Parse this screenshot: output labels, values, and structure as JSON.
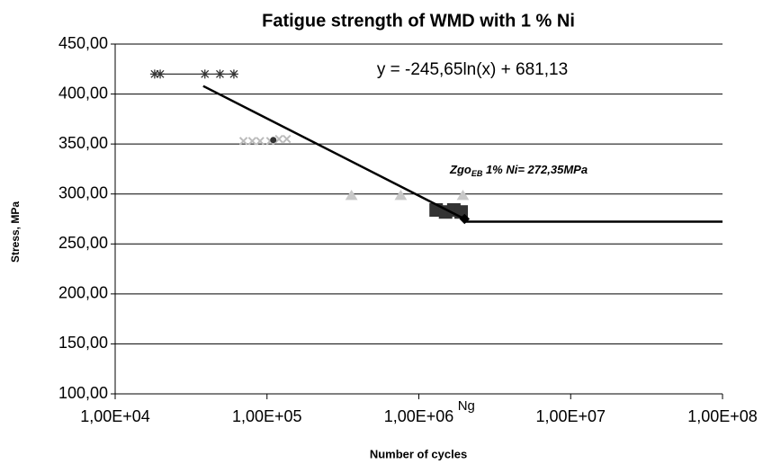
{
  "chart_data": {
    "type": "scatter",
    "title": "Fatigue strength of WMD with 1 % Ni",
    "y_label": "Stress, MPa",
    "x_label": "Number of cycles",
    "equation": "y = -245,65ln(x)  + 681,13",
    "limit_annotation": {
      "main": "Zgo",
      "subscript": "EB",
      "rest": " 1% Ni= 272,35MPa"
    },
    "ng_label": "Ng",
    "x_log": true,
    "grid": true,
    "xlim": [
      10000,
      100000000
    ],
    "xticks": [
      {
        "value": 10000,
        "label": "1,00E+04"
      },
      {
        "value": 100000,
        "label": "1,00E+05"
      },
      {
        "value": 1000000,
        "label": "1,00E+06"
      },
      {
        "value": 10000000,
        "label": "1,00E+07"
      },
      {
        "value": 100000000,
        "label": "1,00E+08"
      }
    ],
    "ylim": [
      100,
      450
    ],
    "yticks": [
      {
        "value": 100,
        "label": "100,00"
      },
      {
        "value": 150,
        "label": "150,00"
      },
      {
        "value": 200,
        "label": "200,00"
      },
      {
        "value": 250,
        "label": "250,00"
      },
      {
        "value": 300,
        "label": "300,00"
      },
      {
        "value": 350,
        "label": "350,00"
      },
      {
        "value": 400,
        "label": "400,00"
      },
      {
        "value": 450,
        "label": "450,00"
      }
    ],
    "series": [
      {
        "color": "#333333",
        "marker": "star",
        "line": true,
        "x": [
          18200,
          19800,
          39000,
          49000,
          60500
        ],
        "values": [
          420,
          420,
          420,
          420,
          420
        ]
      },
      {
        "color": "#bbbbbb",
        "marker": "x",
        "line": false,
        "x": [
          70000,
          80000,
          90000,
          105000,
          120000,
          135000
        ],
        "values": [
          353,
          353,
          353,
          353,
          355,
          355
        ]
      },
      {
        "color": "#333333",
        "marker": "dot",
        "line": false,
        "x": [
          110000
        ],
        "values": [
          354
        ]
      },
      {
        "color": "#c8c8c8",
        "marker": "triangle",
        "line": false,
        "x": [
          360000,
          760000,
          1950000
        ],
        "values": [
          298,
          298,
          298
        ]
      },
      {
        "color": "#333333",
        "marker": "square",
        "line": false,
        "x": [
          1300000,
          1500000,
          1700000,
          1900000
        ],
        "values": [
          284,
          282,
          284,
          282
        ]
      },
      {
        "color": "#000000",
        "marker": "none",
        "line": true,
        "x": [
          38000,
          2000000
        ],
        "values": [
          408,
          275
        ]
      },
      {
        "color": "#000000",
        "marker": "none",
        "line": true,
        "x": [
          2000000,
          100000000
        ],
        "values": [
          272.35,
          272.35
        ]
      },
      {
        "color": "#000000",
        "marker": "diamond",
        "line": false,
        "x": [
          2000000
        ],
        "values": [
          275
        ]
      }
    ]
  }
}
